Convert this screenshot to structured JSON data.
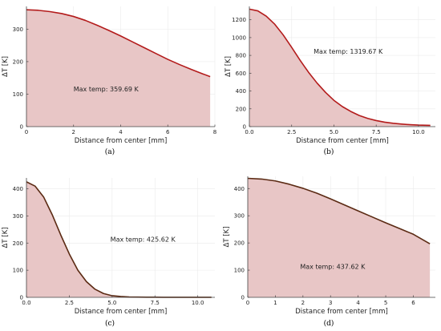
{
  "chart_data": [
    {
      "panel": "(a)",
      "type": "area",
      "xlabel": "Distance from center [mm]",
      "ylabel": "ΔT [K]",
      "xlim": [
        0,
        8
      ],
      "ylim": [
        0,
        370
      ],
      "xticks": [
        0,
        2,
        4,
        6,
        8
      ],
      "yticks": [
        0,
        100,
        200,
        300
      ],
      "annotation": "Max temp: 359.69 K",
      "annotation_at": [
        2,
        108
      ],
      "color": "#b31b1b",
      "fill": "#e8c6c6",
      "x": [
        0,
        0.5,
        1,
        1.5,
        2,
        2.5,
        3,
        3.5,
        4,
        4.5,
        5,
        5.5,
        6,
        6.5,
        7,
        7.5,
        7.8
      ],
      "y": [
        359.69,
        358,
        354,
        348,
        339,
        327,
        312,
        296,
        279,
        261,
        243,
        225,
        207,
        191,
        176,
        162,
        154
      ]
    },
    {
      "panel": "(b)",
      "type": "area",
      "xlabel": "Distance from center [mm]",
      "ylabel": "ΔT [K]",
      "xlim": [
        0,
        11
      ],
      "ylim": [
        0,
        1350
      ],
      "xticks": [
        0,
        2.5,
        5,
        7.5,
        10
      ],
      "xticklabels": [
        "0.0",
        "2.5",
        "5.0",
        "7.5",
        "10.0"
      ],
      "yticks": [
        0,
        200,
        400,
        600,
        800,
        1000,
        1200
      ],
      "annotation": "Max temp: 1319.67 K",
      "annotation_at": [
        3.8,
        820
      ],
      "color": "#b31b1b",
      "fill": "#e8c6c6",
      "x": [
        0,
        0.5,
        1,
        1.5,
        2,
        2.5,
        3,
        3.5,
        4,
        4.5,
        5,
        5.5,
        6,
        6.5,
        7,
        7.5,
        8,
        8.5,
        9,
        9.5,
        10,
        10.7
      ],
      "y": [
        1319.67,
        1300,
        1240,
        1150,
        1030,
        890,
        745,
        610,
        490,
        385,
        295,
        225,
        170,
        125,
        92,
        68,
        50,
        38,
        29,
        22,
        17,
        14
      ]
    },
    {
      "panel": "(c)",
      "type": "area",
      "xlabel": "Distance from center [mm]",
      "ylabel": "ΔT [K]",
      "xlim": [
        0,
        11
      ],
      "ylim": [
        0,
        440
      ],
      "xticks": [
        0,
        2.5,
        5,
        7.5,
        10
      ],
      "xticklabels": [
        "0.0",
        "2.5",
        "5.0",
        "7.5",
        "10.0"
      ],
      "yticks": [
        0,
        100,
        200,
        300,
        400
      ],
      "annotation": "Max temp: 425.62 K",
      "annotation_at": [
        4.9,
        205
      ],
      "color": "#5b2a13",
      "fill": "#e8c6c6",
      "x": [
        0,
        0.5,
        1,
        1.5,
        2,
        2.5,
        3,
        3.5,
        4,
        4.5,
        5,
        5.5,
        6,
        6.5,
        7,
        7.5,
        8,
        9,
        10,
        10.8
      ],
      "y": [
        425.62,
        410,
        370,
        305,
        230,
        160,
        100,
        58,
        30,
        14,
        6,
        3,
        1.5,
        1,
        0.6,
        0.4,
        0.3,
        0.2,
        0.1,
        0.1
      ]
    },
    {
      "panel": "(d)",
      "type": "area",
      "xlabel": "Distance from center [mm]",
      "ylabel": "ΔT [K]",
      "xlim": [
        0,
        6.8
      ],
      "ylim": [
        0,
        445
      ],
      "xticks": [
        0,
        1,
        2,
        3,
        4,
        5,
        6
      ],
      "yticks": [
        0,
        100,
        200,
        300,
        400
      ],
      "annotation": "Max temp: 437.62 K",
      "annotation_at": [
        1.9,
        105
      ],
      "color": "#5b2a13",
      "fill": "#e8c6c6",
      "x": [
        0,
        0.5,
        1,
        1.5,
        2,
        2.5,
        3,
        3.5,
        4,
        4.5,
        5,
        5.5,
        6,
        6.6
      ],
      "y": [
        437.62,
        435,
        428,
        416,
        401,
        383,
        362,
        340,
        318,
        296,
        274,
        253,
        232,
        197
      ]
    }
  ]
}
